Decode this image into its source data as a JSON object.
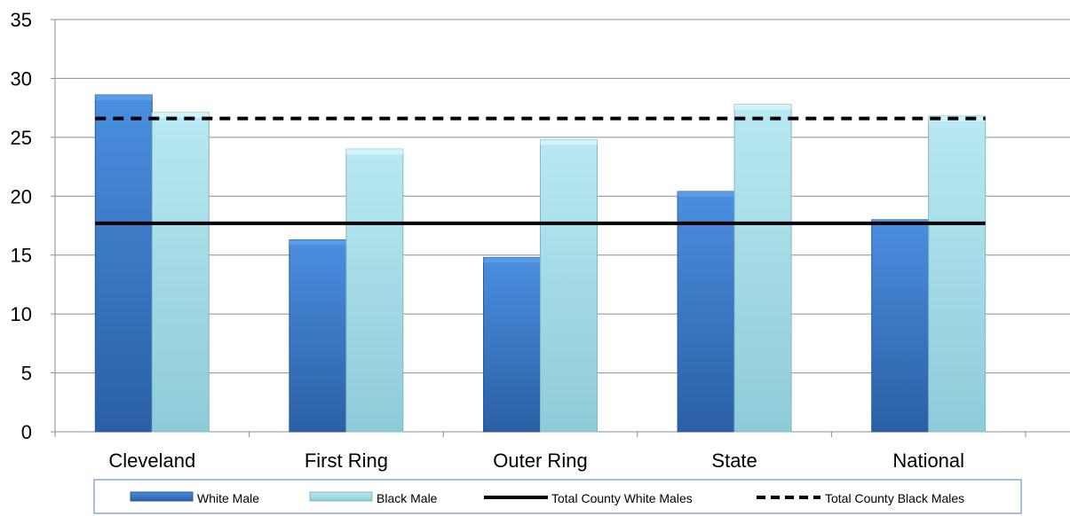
{
  "chart_data": {
    "type": "bar",
    "categories": [
      "Cleveland",
      "First Ring",
      "Outer Ring",
      "State",
      "National"
    ],
    "series": [
      {
        "name": "White Male",
        "values": [
          28.6,
          16.3,
          14.8,
          20.4,
          18.0
        ],
        "color": "#3f7fd0"
      },
      {
        "name": "Black Male",
        "values": [
          27.1,
          24.0,
          24.8,
          27.8,
          26.8
        ],
        "color": "#a8dde8"
      }
    ],
    "lines": [
      {
        "name": "Total County White Males",
        "value": 17.7,
        "style": "solid",
        "color": "#000000"
      },
      {
        "name": "Total County Black Males",
        "value": 26.6,
        "style": "dashed",
        "color": "#000000"
      }
    ],
    "ylim": [
      0,
      35
    ],
    "yticks": [
      0,
      5,
      10,
      15,
      20,
      25,
      30,
      35
    ],
    "grid": true,
    "legend": "bottom",
    "title": "",
    "xlabel": "",
    "ylabel": ""
  }
}
